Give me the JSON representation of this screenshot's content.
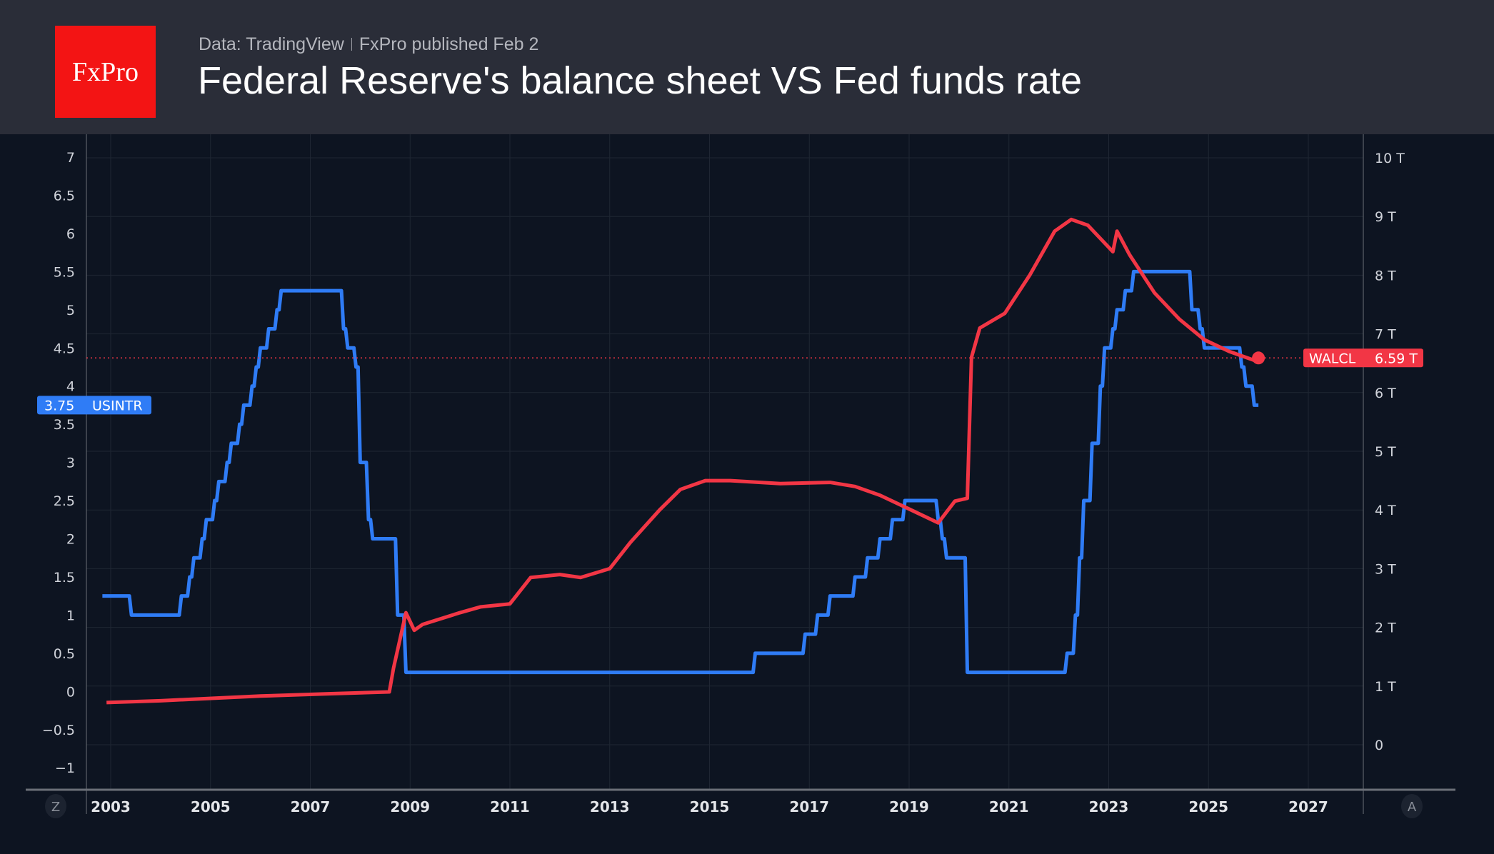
{
  "header": {
    "logo_text": "FxPro",
    "source": "Data: TradingView",
    "publisher": "FxPro published Feb 2",
    "title": "Federal Reserve's balance sheet VS Fed funds rate"
  },
  "corner_buttons": {
    "left": "Z",
    "right": "A"
  },
  "chart_data": {
    "type": "line",
    "title": "Federal Reserve's balance sheet VS Fed funds rate",
    "x_ticks": [
      "2003",
      "2005",
      "2007",
      "2009",
      "2011",
      "2013",
      "2015",
      "2017",
      "2019",
      "2021",
      "2023",
      "2025",
      "2027"
    ],
    "xlim": [
      "2002-09",
      "2028-02"
    ],
    "left_axis": {
      "ticks": [
        "7",
        "6.5",
        "6",
        "5.5",
        "5",
        "4.5",
        "4",
        "3.5",
        "3",
        "2.5",
        "2",
        "1.5",
        "1",
        "0.5",
        "0",
        "−0.5",
        "−1"
      ],
      "ylim": [
        -1.3,
        7.3
      ]
    },
    "right_axis": {
      "ticks": [
        "10 T",
        "9 T",
        "8 T",
        "7 T",
        "6 T",
        "5 T",
        "4 T",
        "3 T",
        "2 T",
        "1 T",
        "0"
      ],
      "ylim": [
        -0.7,
        10.7
      ],
      "unit": "T"
    },
    "grid": true,
    "series": [
      {
        "name": "USINTR",
        "axis": "left",
        "color": "#2f7cf6",
        "last_value_label": "3.75",
        "step": true,
        "points": [
          [
            "2002-11",
            1.25
          ],
          [
            "2003-06",
            1.0
          ],
          [
            "2004-06",
            1.25
          ],
          [
            "2004-08",
            1.5
          ],
          [
            "2004-09",
            1.75
          ],
          [
            "2004-11",
            2.0
          ],
          [
            "2004-12",
            2.25
          ],
          [
            "2005-02",
            2.5
          ],
          [
            "2005-03",
            2.75
          ],
          [
            "2005-05",
            3.0
          ],
          [
            "2005-06",
            3.25
          ],
          [
            "2005-08",
            3.5
          ],
          [
            "2005-09",
            3.75
          ],
          [
            "2005-11",
            4.0
          ],
          [
            "2005-12",
            4.25
          ],
          [
            "2006-01",
            4.5
          ],
          [
            "2006-03",
            4.75
          ],
          [
            "2006-05",
            5.0
          ],
          [
            "2006-06",
            5.25
          ],
          [
            "2007-09",
            4.75
          ],
          [
            "2007-10",
            4.5
          ],
          [
            "2007-12",
            4.25
          ],
          [
            "2008-01",
            3.0
          ],
          [
            "2008-03",
            2.25
          ],
          [
            "2008-04",
            2.0
          ],
          [
            "2008-10",
            1.0
          ],
          [
            "2008-12",
            0.25
          ],
          [
            "2015-12",
            0.5
          ],
          [
            "2016-12",
            0.75
          ],
          [
            "2017-03",
            1.0
          ],
          [
            "2017-06",
            1.25
          ],
          [
            "2017-12",
            1.5
          ],
          [
            "2018-03",
            1.75
          ],
          [
            "2018-06",
            2.0
          ],
          [
            "2018-09",
            2.25
          ],
          [
            "2018-12",
            2.5
          ],
          [
            "2019-08",
            2.25
          ],
          [
            "2019-09",
            2.0
          ],
          [
            "2019-10",
            1.75
          ],
          [
            "2020-03",
            0.25
          ],
          [
            "2022-03",
            0.5
          ],
          [
            "2022-05",
            1.0
          ],
          [
            "2022-06",
            1.75
          ],
          [
            "2022-07",
            2.5
          ],
          [
            "2022-09",
            3.25
          ],
          [
            "2022-11",
            4.0
          ],
          [
            "2022-12",
            4.5
          ],
          [
            "2023-02",
            4.75
          ],
          [
            "2023-03",
            5.0
          ],
          [
            "2023-05",
            5.25
          ],
          [
            "2023-07",
            5.5
          ],
          [
            "2024-09",
            5.0
          ],
          [
            "2024-11",
            4.75
          ],
          [
            "2024-12",
            4.5
          ],
          [
            "2025-09",
            4.25
          ],
          [
            "2025-10",
            4.0
          ],
          [
            "2025-12",
            3.75
          ],
          [
            "2026-01",
            3.75
          ]
        ]
      },
      {
        "name": "WALCL",
        "axis": "right",
        "color": "#f23645",
        "last_value_label": "6.59 T",
        "step": false,
        "points": [
          [
            "2002-12",
            0.72
          ],
          [
            "2004-01",
            0.75
          ],
          [
            "2006-01",
            0.83
          ],
          [
            "2007-06",
            0.87
          ],
          [
            "2008-08",
            0.9
          ],
          [
            "2008-09",
            1.3
          ],
          [
            "2008-12",
            2.25
          ],
          [
            "2009-02",
            1.95
          ],
          [
            "2009-04",
            2.05
          ],
          [
            "2010-01",
            2.25
          ],
          [
            "2010-06",
            2.35
          ],
          [
            "2011-01",
            2.4
          ],
          [
            "2011-06",
            2.85
          ],
          [
            "2012-01",
            2.9
          ],
          [
            "2012-06",
            2.85
          ],
          [
            "2013-01",
            3.0
          ],
          [
            "2013-06",
            3.45
          ],
          [
            "2014-01",
            4.0
          ],
          [
            "2014-06",
            4.35
          ],
          [
            "2014-12",
            4.5
          ],
          [
            "2015-06",
            4.5
          ],
          [
            "2016-06",
            4.45
          ],
          [
            "2017-06",
            4.47
          ],
          [
            "2017-12",
            4.4
          ],
          [
            "2018-06",
            4.25
          ],
          [
            "2018-12",
            4.05
          ],
          [
            "2019-08",
            3.78
          ],
          [
            "2019-12",
            4.15
          ],
          [
            "2020-03",
            4.2
          ],
          [
            "2020-04",
            6.6
          ],
          [
            "2020-06",
            7.1
          ],
          [
            "2020-12",
            7.35
          ],
          [
            "2021-06",
            8.0
          ],
          [
            "2021-12",
            8.75
          ],
          [
            "2022-04",
            8.95
          ],
          [
            "2022-08",
            8.85
          ],
          [
            "2022-12",
            8.55
          ],
          [
            "2023-02",
            8.4
          ],
          [
            "2023-03",
            8.75
          ],
          [
            "2023-06",
            8.35
          ],
          [
            "2023-12",
            7.7
          ],
          [
            "2024-06",
            7.25
          ],
          [
            "2024-12",
            6.9
          ],
          [
            "2025-06",
            6.7
          ],
          [
            "2025-12",
            6.55
          ],
          [
            "2026-01",
            6.59
          ]
        ]
      }
    ]
  }
}
